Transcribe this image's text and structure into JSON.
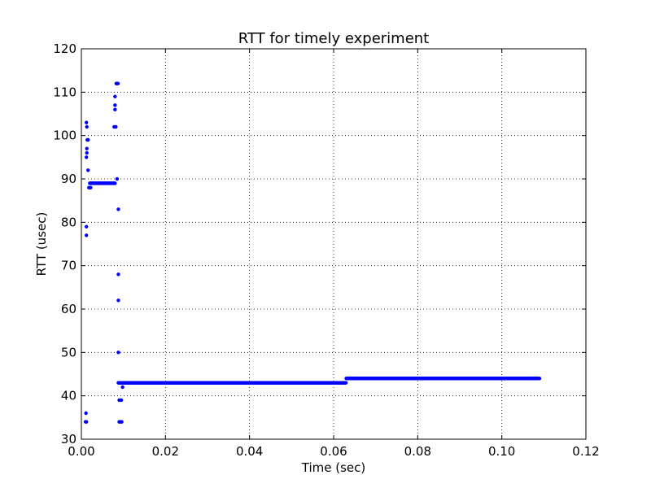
{
  "chart_data": {
    "type": "scatter",
    "title": "RTT for timely experiment",
    "xlabel": "Time (sec)",
    "ylabel": "RTT (usec)",
    "xlim": [
      0.0,
      0.12
    ],
    "ylim": [
      30,
      120
    ],
    "x_ticks": [
      0.0,
      0.02,
      0.04,
      0.06,
      0.08,
      0.1,
      0.12
    ],
    "x_tick_labels": [
      "0.00",
      "0.02",
      "0.04",
      "0.06",
      "0.08",
      "0.10",
      "0.12"
    ],
    "y_ticks": [
      30,
      40,
      50,
      60,
      70,
      80,
      90,
      100,
      110,
      120
    ],
    "y_tick_labels": [
      "30",
      "40",
      "50",
      "60",
      "70",
      "80",
      "90",
      "100",
      "110",
      "120"
    ],
    "grid": true,
    "marker_color": "#0000ff",
    "series": [
      {
        "points": [
          [
            0.001,
            34
          ],
          [
            0.0012,
            34
          ],
          [
            0.0011,
            36
          ],
          [
            0.0012,
            77
          ],
          [
            0.0012,
            79
          ],
          [
            0.0012,
            95
          ],
          [
            0.0013,
            96
          ],
          [
            0.0013,
            97
          ],
          [
            0.0014,
            99
          ],
          [
            0.0016,
            99
          ],
          [
            0.0013,
            102
          ],
          [
            0.0012,
            103
          ],
          [
            0.0016,
            92
          ],
          [
            0.0018,
            88
          ],
          [
            0.002,
            88
          ],
          [
            0.0022,
            88
          ],
          [
            0.0078,
            102
          ],
          [
            0.0082,
            102
          ],
          [
            0.008,
            106
          ],
          [
            0.008,
            107
          ],
          [
            0.008,
            109
          ],
          [
            0.0083,
            112
          ],
          [
            0.0085,
            112
          ],
          [
            0.0087,
            112
          ],
          [
            0.0085,
            90
          ],
          [
            0.0088,
            83
          ],
          [
            0.0088,
            68
          ],
          [
            0.0088,
            62
          ],
          [
            0.0088,
            50
          ],
          [
            0.009,
            39
          ],
          [
            0.0095,
            39
          ],
          [
            0.009,
            34
          ],
          [
            0.0093,
            34
          ],
          [
            0.0096,
            34
          ],
          [
            0.0098,
            42
          ]
        ],
        "segments": [
          {
            "x_start": 0.002,
            "x_end": 0.008,
            "y": 89,
            "step": 0.00012
          },
          {
            "x_start": 0.0088,
            "x_end": 0.063,
            "y": 43,
            "step": 0.00012
          },
          {
            "x_start": 0.063,
            "x_end": 0.109,
            "y": 44,
            "step": 0.00012
          }
        ]
      }
    ]
  }
}
